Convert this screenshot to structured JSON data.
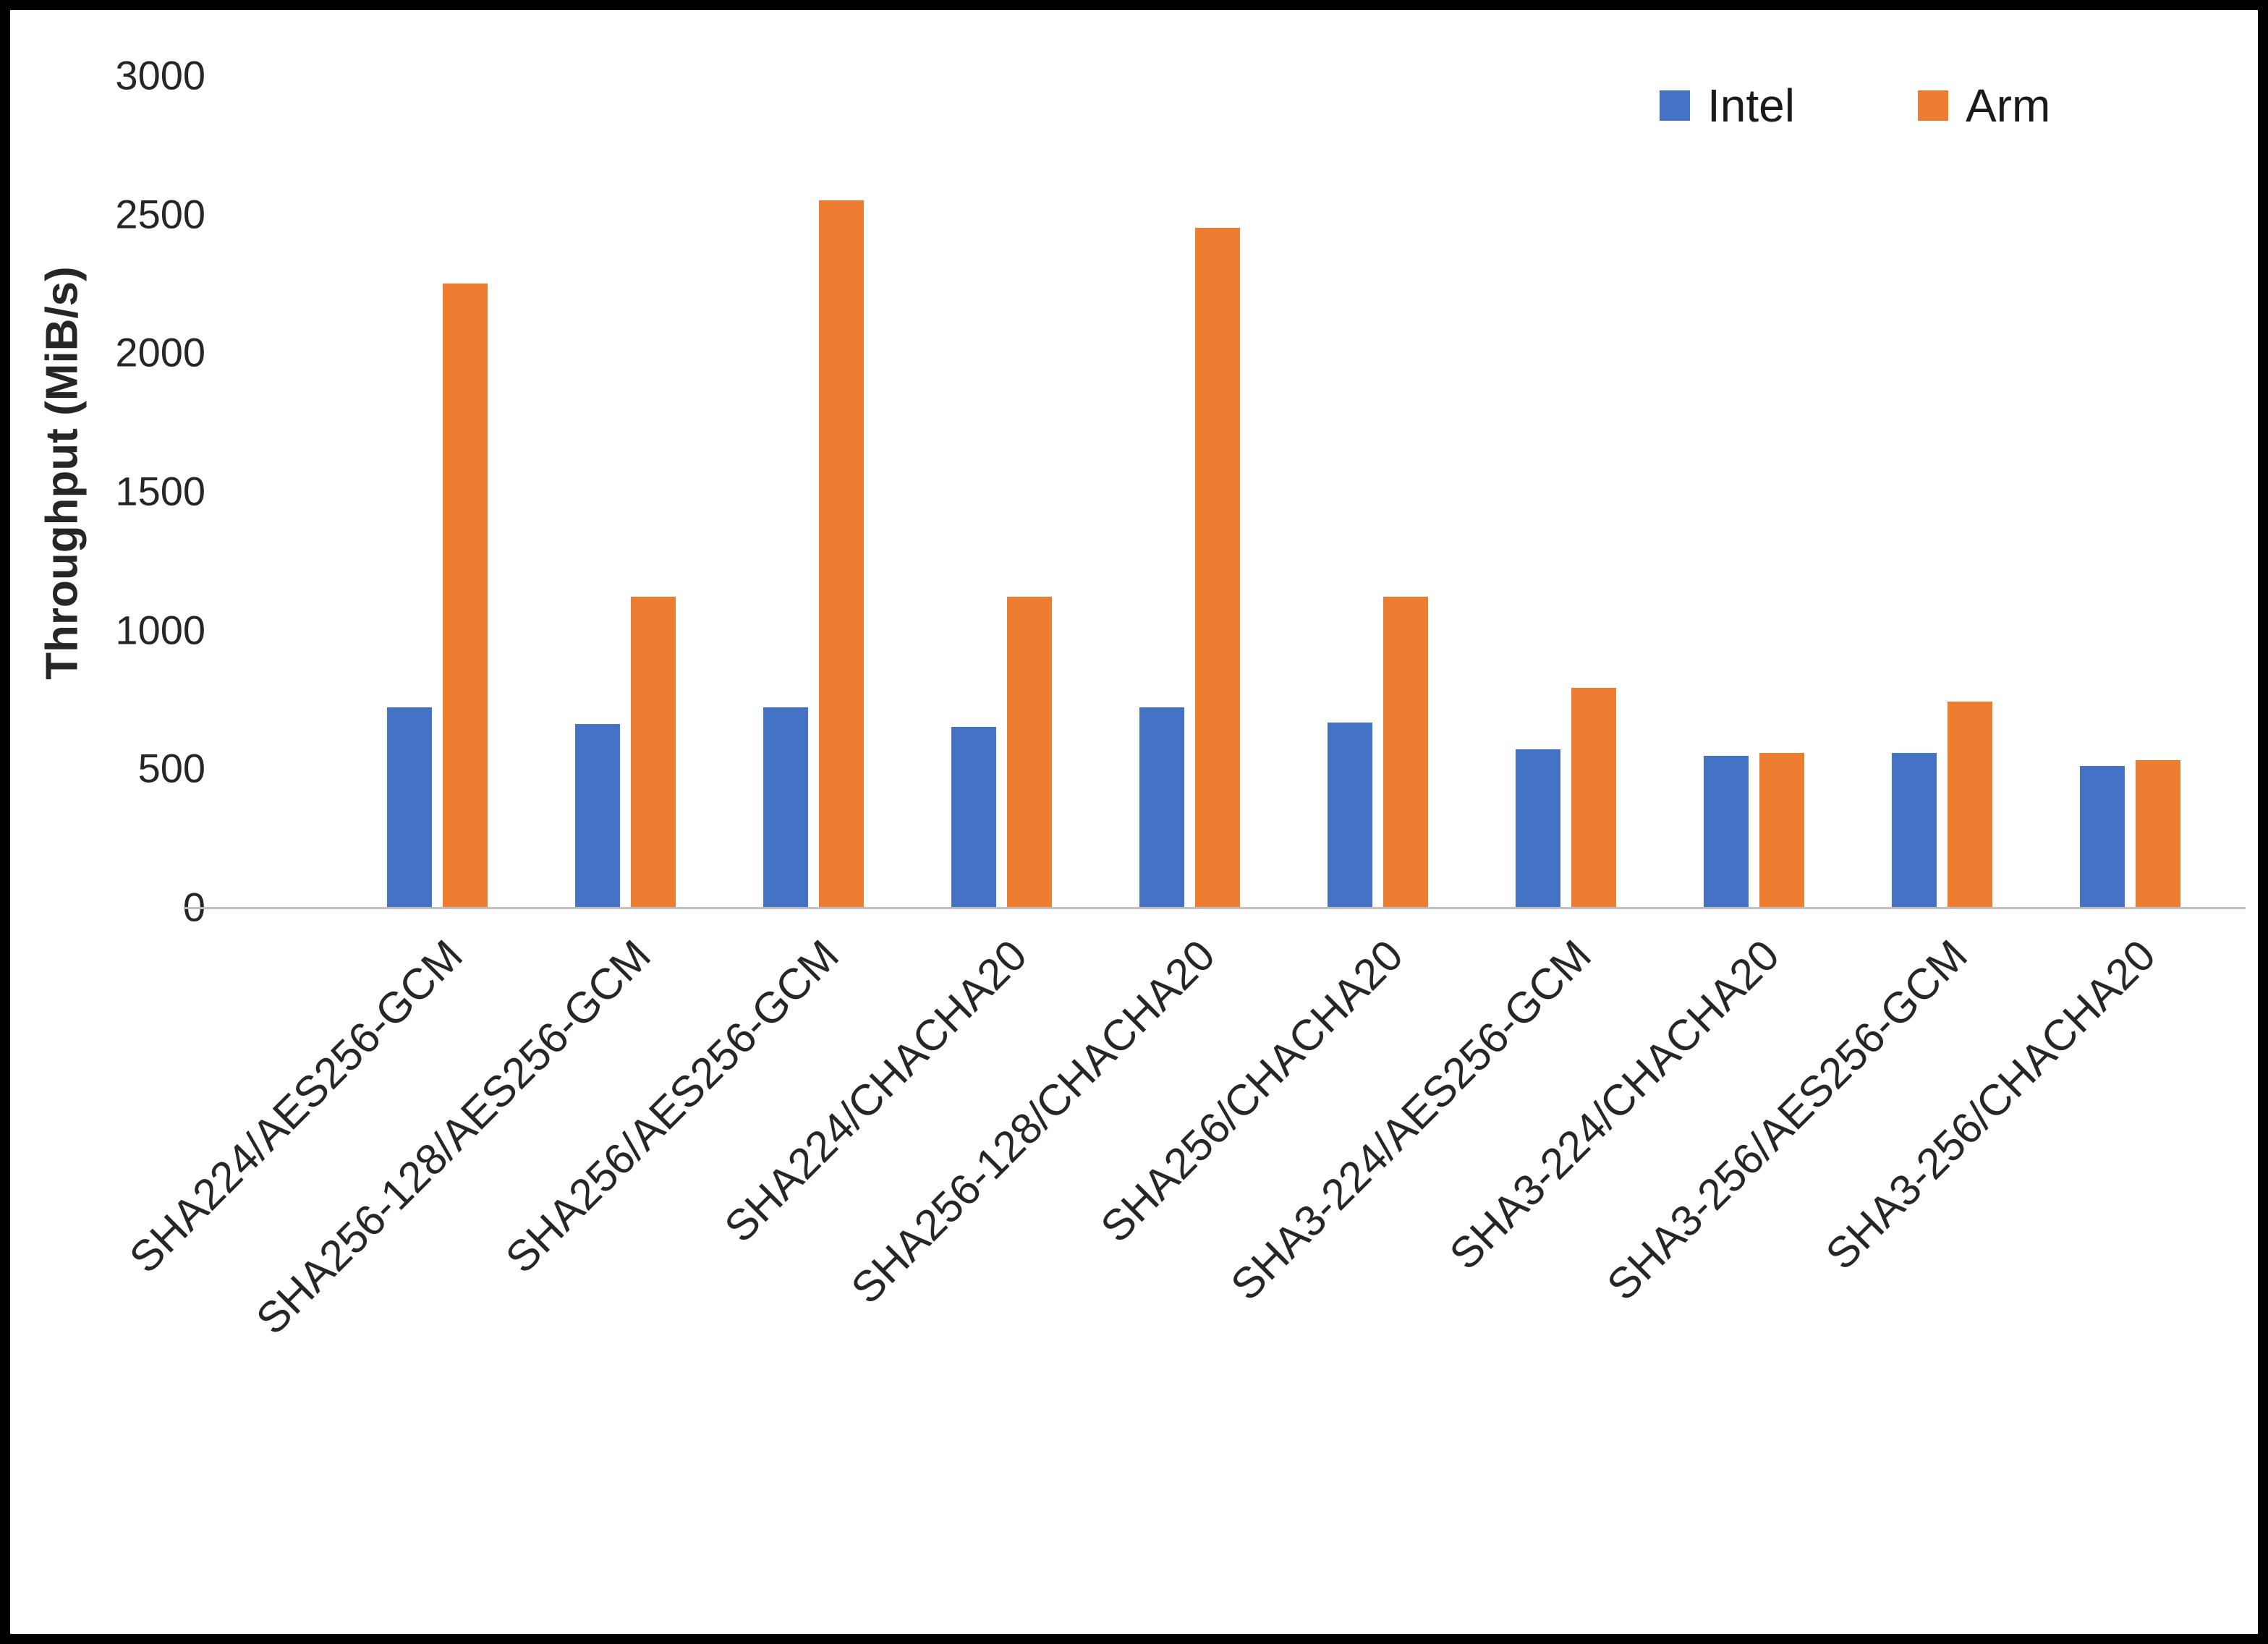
{
  "chart_data": {
    "type": "bar",
    "title": "",
    "ylabel": "Throughput (MiB/s)",
    "xlabel": "",
    "ylim": [
      0,
      3000
    ],
    "yticks": [
      0,
      500,
      1000,
      1500,
      2000,
      2500,
      3000
    ],
    "grid": false,
    "legend_position": "top-right",
    "categories": [
      "SHA224/AES256-GCM",
      "SHA256-128/AES256-GCM",
      "SHA256/AES256-GCM",
      "SHA224/CHACHA20",
      "SHA256-128/CHACHA20",
      "SHA256/CHACHA20",
      "SHA3-224/AES256-GCM",
      "SHA3-224/CHACHA20",
      "SHA3-256/AES256-GCM",
      "SHA3-256/CHACHA20"
    ],
    "series": [
      {
        "name": "Intel",
        "color": "#4472C4",
        "values": [
          720,
          660,
          720,
          650,
          720,
          665,
          570,
          545,
          555,
          510
        ]
      },
      {
        "name": "Arm",
        "color": "#ED7D31",
        "values": [
          2250,
          1120,
          2550,
          1120,
          2450,
          1120,
          790,
          555,
          740,
          530
        ]
      }
    ]
  }
}
